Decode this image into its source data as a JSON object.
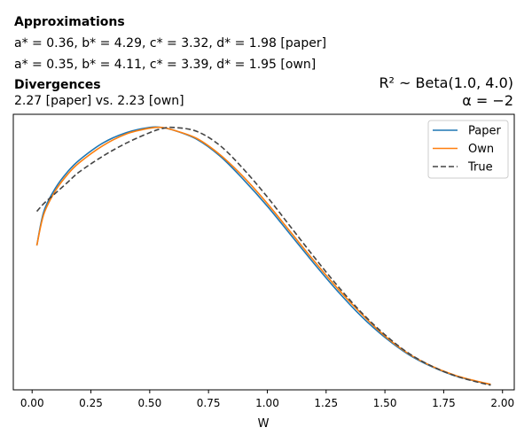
{
  "header": {
    "approx_heading": "Approximations",
    "approx_paper_prefix": "a* = 0.36, b* = 4.29, c* = 3.32, d* = 1.98",
    "approx_paper_suffix": "[paper]",
    "approx_own_prefix": "a* = 0.35, b* = 4.11, c* = 3.39, d* = 1.95",
    "approx_own_suffix": "[own]",
    "div_heading": "Divergences",
    "div_text": "2.27 [paper] vs. 2.23 [own]",
    "prior_label": "R² ~  Beta(1.0, 4.0)",
    "alpha_label": "α = −2"
  },
  "colors": {
    "paper": "#1f77b4",
    "own": "#ff7f0e",
    "true": "#444444"
  },
  "chart_data": {
    "type": "line",
    "title": "",
    "xlabel": "W",
    "ylabel": "",
    "xlim": [
      -0.08,
      2.05
    ],
    "ylim": [
      0,
      1.05
    ],
    "xticks": [
      0.0,
      0.25,
      0.5,
      0.75,
      1.0,
      1.25,
      1.5,
      1.75,
      2.0
    ],
    "xtick_labels": [
      "0.00",
      "0.25",
      "0.50",
      "0.75",
      "1.00",
      "1.25",
      "1.50",
      "1.75",
      "2.00"
    ],
    "yticks_shown": false,
    "legend_position": "top-right",
    "series": [
      {
        "name": "Paper",
        "style": "solid",
        "color": "#1f77b4",
        "x": [
          0.02,
          0.05,
          0.1,
          0.15,
          0.2,
          0.3,
          0.4,
          0.5,
          0.55,
          0.6,
          0.7,
          0.8,
          0.9,
          1.0,
          1.1,
          1.2,
          1.3,
          1.4,
          1.5,
          1.6,
          1.7,
          1.8,
          1.9,
          1.95
        ],
        "y": [
          0.55,
          0.68,
          0.77,
          0.83,
          0.875,
          0.94,
          0.98,
          1.0,
          1.0,
          0.99,
          0.955,
          0.89,
          0.8,
          0.7,
          0.59,
          0.48,
          0.375,
          0.28,
          0.2,
          0.135,
          0.088,
          0.053,
          0.03,
          0.02
        ]
      },
      {
        "name": "Own",
        "style": "solid",
        "color": "#ff7f0e",
        "x": [
          0.02,
          0.05,
          0.1,
          0.15,
          0.2,
          0.3,
          0.4,
          0.5,
          0.55,
          0.6,
          0.7,
          0.8,
          0.9,
          1.0,
          1.1,
          1.2,
          1.3,
          1.4,
          1.5,
          1.6,
          1.7,
          1.8,
          1.9,
          1.95
        ],
        "y": [
          0.55,
          0.67,
          0.76,
          0.82,
          0.865,
          0.93,
          0.975,
          0.997,
          1.0,
          0.99,
          0.958,
          0.895,
          0.81,
          0.71,
          0.6,
          0.49,
          0.385,
          0.29,
          0.205,
          0.138,
          0.09,
          0.055,
          0.031,
          0.021
        ]
      },
      {
        "name": "True",
        "style": "dashed",
        "color": "#444444",
        "x": [
          0.02,
          0.05,
          0.1,
          0.15,
          0.2,
          0.3,
          0.4,
          0.5,
          0.55,
          0.6,
          0.7,
          0.8,
          0.9,
          1.0,
          1.1,
          1.2,
          1.3,
          1.4,
          1.5,
          1.6,
          1.7,
          1.8,
          1.9,
          1.95
        ],
        "y": [
          0.68,
          0.71,
          0.75,
          0.79,
          0.83,
          0.89,
          0.94,
          0.98,
          0.995,
          1.0,
          0.985,
          0.93,
          0.84,
          0.735,
          0.62,
          0.505,
          0.395,
          0.295,
          0.21,
          0.14,
          0.09,
          0.053,
          0.028,
          0.018
        ]
      }
    ]
  }
}
